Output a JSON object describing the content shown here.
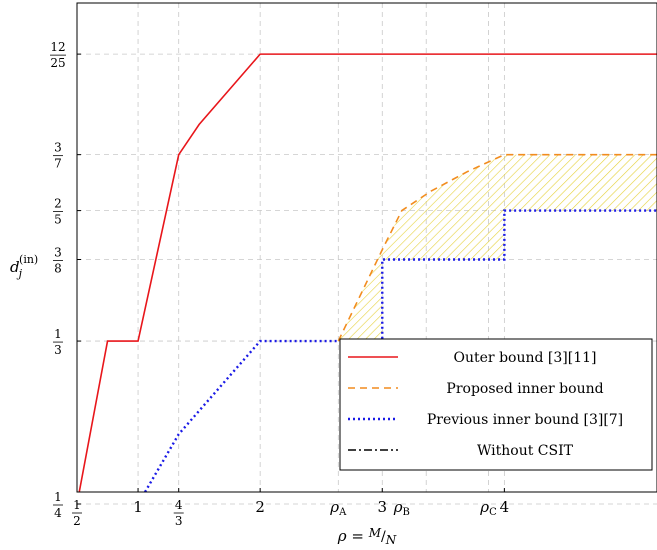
{
  "chart_data": {
    "type": "line",
    "xlabel": "ρ = M/N",
    "ylabel": "d_j^(in)",
    "xlim": [
      0.5,
      5.25
    ],
    "ylim": [
      0.25,
      0.5
    ],
    "grid": true,
    "legend_position": "bottom-right",
    "x_ticks": [
      {
        "value": 0.5,
        "label": "1/2",
        "kind": "frac",
        "num": "1",
        "den": "2"
      },
      {
        "value": 1,
        "label": "1",
        "kind": "plain"
      },
      {
        "value": 1.333,
        "label": "4/3",
        "kind": "frac",
        "num": "4",
        "den": "3"
      },
      {
        "value": 2,
        "label": "2",
        "kind": "plain"
      },
      {
        "value": 3,
        "label": "3",
        "kind": "plain"
      },
      {
        "value": 4,
        "label": "4",
        "kind": "plain"
      }
    ],
    "x_extra_grid": [
      2.64,
      3.36,
      3.87
    ],
    "x_rho_labels": [
      {
        "value": 2.64,
        "label": "ρ",
        "sub": "A"
      },
      {
        "value": 3.16,
        "label": "ρ",
        "sub": "B"
      },
      {
        "value": 3.87,
        "label": "ρ",
        "sub": "C"
      }
    ],
    "y_ticks": [
      {
        "value": 0.25,
        "num": "1",
        "den": "4"
      },
      {
        "value": 0.3333,
        "num": "1",
        "den": "3"
      },
      {
        "value": 0.375,
        "num": "3",
        "den": "8"
      },
      {
        "value": 0.4,
        "num": "2",
        "den": "5"
      },
      {
        "value": 0.4286,
        "num": "3",
        "den": "7"
      },
      {
        "value": 0.48,
        "num": "12",
        "den": "25"
      }
    ],
    "series": [
      {
        "name": "Outer bound [3][11]",
        "color": "#e8161b",
        "style": "solid",
        "x": [
          0.5,
          0.75,
          1,
          1.333,
          1.5,
          2,
          5.25
        ],
        "y": [
          0.25,
          0.3333,
          0.3333,
          0.4286,
          0.444,
          0.48,
          0.48
        ]
      },
      {
        "name": "Proposed inner bound",
        "color": "#f28c1e",
        "style": "dashed",
        "x": [
          2.64,
          3,
          3.16,
          3.4,
          3.7,
          4,
          5.25
        ],
        "y": [
          0.3333,
          0.38,
          0.4,
          0.41,
          0.42,
          0.4286,
          0.4286
        ]
      },
      {
        "name": "Previous inner bound [3][7]",
        "color": "#1a1ae6",
        "style": "dotted",
        "x": [
          0.5,
          1,
          1.333,
          2,
          3,
          3,
          4,
          4,
          5.25
        ],
        "y": [
          0.25,
          0.25,
          0.2857,
          0.3333,
          0.3333,
          0.375,
          0.375,
          0.4,
          0.4
        ]
      },
      {
        "name": "Without CSIT",
        "color": "#000000",
        "style": "dashdot",
        "x": [
          0.5,
          5.25
        ],
        "y": [
          0.25,
          0.25
        ]
      }
    ],
    "hatched_region": {
      "color": "#e6d23c",
      "between": [
        "Proposed inner bound",
        "Previous inner bound [3][7]"
      ]
    }
  }
}
